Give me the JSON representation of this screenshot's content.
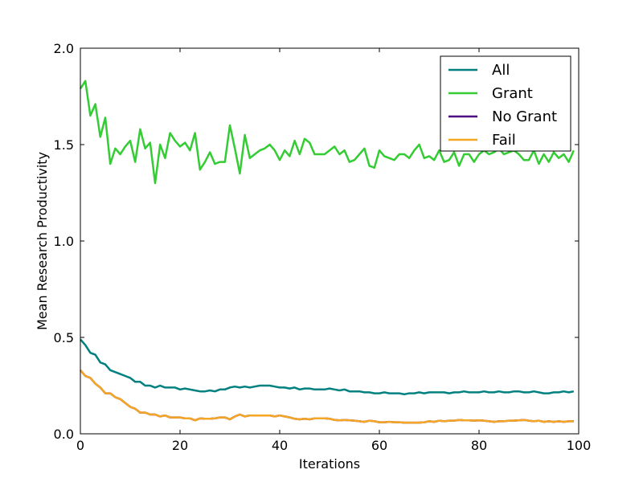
{
  "chart_data": {
    "type": "line",
    "title": "",
    "xlabel": "Iterations",
    "ylabel": "Mean Research Productivity",
    "xlim": [
      0,
      100
    ],
    "ylim": [
      0.0,
      2.0
    ],
    "xticks": [
      0,
      20,
      40,
      60,
      80,
      100
    ],
    "yticks": [
      0.0,
      0.5,
      1.0,
      1.5,
      2.0
    ],
    "xtick_labels": [
      "0",
      "20",
      "40",
      "60",
      "80",
      "100"
    ],
    "ytick_labels": [
      "0.0",
      "0.5",
      "1.0",
      "1.5",
      "2.0"
    ],
    "grid": false,
    "legend_position": "top-right",
    "series": [
      {
        "name": "All",
        "color": "#008080",
        "x": [
          0,
          1,
          2,
          3,
          4,
          5,
          6,
          7,
          8,
          9,
          10,
          11,
          12,
          13,
          14,
          15,
          16,
          17,
          18,
          19,
          20,
          21,
          22,
          23,
          24,
          25,
          26,
          27,
          28,
          29,
          30,
          31,
          32,
          33,
          34,
          35,
          36,
          37,
          38,
          39,
          40,
          41,
          42,
          43,
          44,
          45,
          46,
          47,
          48,
          49,
          50,
          51,
          52,
          53,
          54,
          55,
          56,
          57,
          58,
          59,
          60,
          61,
          62,
          63,
          64,
          65,
          66,
          67,
          68,
          69,
          70,
          71,
          72,
          73,
          74,
          75,
          76,
          77,
          78,
          79,
          80,
          81,
          82,
          83,
          84,
          85,
          86,
          87,
          88,
          89,
          90,
          91,
          92,
          93,
          94,
          95,
          96,
          97,
          98,
          99
        ],
        "values": [
          0.49,
          0.46,
          0.42,
          0.41,
          0.37,
          0.36,
          0.33,
          0.32,
          0.31,
          0.3,
          0.29,
          0.27,
          0.27,
          0.25,
          0.25,
          0.24,
          0.25,
          0.24,
          0.24,
          0.24,
          0.23,
          0.235,
          0.23,
          0.225,
          0.22,
          0.22,
          0.225,
          0.22,
          0.23,
          0.23,
          0.24,
          0.245,
          0.24,
          0.245,
          0.24,
          0.245,
          0.25,
          0.25,
          0.25,
          0.245,
          0.24,
          0.24,
          0.235,
          0.24,
          0.23,
          0.235,
          0.235,
          0.23,
          0.23,
          0.23,
          0.235,
          0.23,
          0.225,
          0.23,
          0.22,
          0.22,
          0.22,
          0.215,
          0.215,
          0.21,
          0.21,
          0.215,
          0.21,
          0.21,
          0.21,
          0.205,
          0.21,
          0.21,
          0.215,
          0.21,
          0.215,
          0.215,
          0.215,
          0.215,
          0.21,
          0.215,
          0.215,
          0.22,
          0.215,
          0.215,
          0.215,
          0.22,
          0.215,
          0.215,
          0.22,
          0.215,
          0.215,
          0.22,
          0.22,
          0.215,
          0.215,
          0.22,
          0.215,
          0.21,
          0.21,
          0.215,
          0.215,
          0.22,
          0.215,
          0.22
        ]
      },
      {
        "name": "Grant",
        "color": "#33cc33",
        "x": [
          0,
          1,
          2,
          3,
          4,
          5,
          6,
          7,
          8,
          9,
          10,
          11,
          12,
          13,
          14,
          15,
          16,
          17,
          18,
          19,
          20,
          21,
          22,
          23,
          24,
          25,
          26,
          27,
          28,
          29,
          30,
          31,
          32,
          33,
          34,
          35,
          36,
          37,
          38,
          39,
          40,
          41,
          42,
          43,
          44,
          45,
          46,
          47,
          48,
          49,
          50,
          51,
          52,
          53,
          54,
          55,
          56,
          57,
          58,
          59,
          60,
          61,
          62,
          63,
          64,
          65,
          66,
          67,
          68,
          69,
          70,
          71,
          72,
          73,
          74,
          75,
          76,
          77,
          78,
          79,
          80,
          81,
          82,
          83,
          84,
          85,
          86,
          87,
          88,
          89,
          90,
          91,
          92,
          93,
          94,
          95,
          96,
          97,
          98,
          99
        ],
        "values": [
          1.79,
          1.83,
          1.65,
          1.71,
          1.54,
          1.64,
          1.4,
          1.48,
          1.45,
          1.49,
          1.52,
          1.41,
          1.58,
          1.48,
          1.51,
          1.3,
          1.5,
          1.43,
          1.56,
          1.52,
          1.49,
          1.51,
          1.47,
          1.56,
          1.37,
          1.41,
          1.46,
          1.4,
          1.41,
          1.41,
          1.6,
          1.48,
          1.35,
          1.55,
          1.43,
          1.45,
          1.47,
          1.48,
          1.5,
          1.47,
          1.42,
          1.47,
          1.44,
          1.52,
          1.45,
          1.53,
          1.51,
          1.45,
          1.45,
          1.45,
          1.47,
          1.49,
          1.45,
          1.47,
          1.41,
          1.42,
          1.45,
          1.48,
          1.39,
          1.38,
          1.47,
          1.44,
          1.43,
          1.42,
          1.45,
          1.45,
          1.43,
          1.47,
          1.5,
          1.43,
          1.44,
          1.42,
          1.47,
          1.41,
          1.42,
          1.46,
          1.39,
          1.45,
          1.45,
          1.41,
          1.45,
          1.47,
          1.45,
          1.46,
          1.48,
          1.45,
          1.46,
          1.47,
          1.45,
          1.42,
          1.42,
          1.47,
          1.4,
          1.45,
          1.41,
          1.46,
          1.43,
          1.45,
          1.41,
          1.47
        ]
      },
      {
        "name": "No Grant",
        "color": "#4b0082",
        "x": [
          0,
          1,
          2,
          3,
          4,
          5,
          6,
          7,
          8,
          9,
          10,
          11,
          12,
          13,
          14,
          15,
          16,
          17,
          18,
          19,
          20,
          21,
          22,
          23,
          24,
          25,
          26,
          27,
          28,
          29,
          30,
          31,
          32,
          33,
          34,
          35,
          36,
          37,
          38,
          39,
          40,
          41,
          42,
          43,
          44,
          45,
          46,
          47,
          48,
          49,
          50,
          51,
          52,
          53,
          54,
          55,
          56,
          57,
          58,
          59,
          60,
          61,
          62,
          63,
          64,
          65,
          66,
          67,
          68,
          69,
          70,
          71,
          72,
          73,
          74,
          75,
          76,
          77,
          78,
          79,
          80,
          81,
          82,
          83,
          84,
          85,
          86,
          87,
          88,
          89,
          90,
          91,
          92,
          93,
          94,
          95,
          96,
          97,
          98,
          99
        ],
        "values": [
          0.33,
          0.3,
          0.29,
          0.26,
          0.24,
          0.21,
          0.21,
          0.19,
          0.18,
          0.16,
          0.14,
          0.13,
          0.11,
          0.11,
          0.1,
          0.1,
          0.09,
          0.095,
          0.085,
          0.085,
          0.085,
          0.08,
          0.08,
          0.07,
          0.08,
          0.078,
          0.078,
          0.08,
          0.085,
          0.085,
          0.075,
          0.09,
          0.1,
          0.09,
          0.095,
          0.095,
          0.095,
          0.095,
          0.095,
          0.09,
          0.095,
          0.09,
          0.085,
          0.078,
          0.075,
          0.078,
          0.075,
          0.08,
          0.08,
          0.08,
          0.078,
          0.072,
          0.07,
          0.072,
          0.07,
          0.068,
          0.065,
          0.062,
          0.068,
          0.065,
          0.06,
          0.06,
          0.062,
          0.06,
          0.06,
          0.058,
          0.058,
          0.058,
          0.058,
          0.06,
          0.065,
          0.062,
          0.068,
          0.065,
          0.068,
          0.068,
          0.072,
          0.07,
          0.07,
          0.068,
          0.07,
          0.068,
          0.065,
          0.062,
          0.065,
          0.065,
          0.068,
          0.068,
          0.07,
          0.072,
          0.068,
          0.065,
          0.068,
          0.062,
          0.065,
          0.062,
          0.065,
          0.062,
          0.065,
          0.065
        ]
      },
      {
        "name": "Fail",
        "color": "#f5a623",
        "x": [
          0,
          1,
          2,
          3,
          4,
          5,
          6,
          7,
          8,
          9,
          10,
          11,
          12,
          13,
          14,
          15,
          16,
          17,
          18,
          19,
          20,
          21,
          22,
          23,
          24,
          25,
          26,
          27,
          28,
          29,
          30,
          31,
          32,
          33,
          34,
          35,
          36,
          37,
          38,
          39,
          40,
          41,
          42,
          43,
          44,
          45,
          46,
          47,
          48,
          49,
          50,
          51,
          52,
          53,
          54,
          55,
          56,
          57,
          58,
          59,
          60,
          61,
          62,
          63,
          64,
          65,
          66,
          67,
          68,
          69,
          70,
          71,
          72,
          73,
          74,
          75,
          76,
          77,
          78,
          79,
          80,
          81,
          82,
          83,
          84,
          85,
          86,
          87,
          88,
          89,
          90,
          91,
          92,
          93,
          94,
          95,
          96,
          97,
          98,
          99
        ],
        "values": [
          0.33,
          0.3,
          0.29,
          0.26,
          0.24,
          0.21,
          0.21,
          0.19,
          0.18,
          0.16,
          0.14,
          0.13,
          0.11,
          0.11,
          0.1,
          0.1,
          0.09,
          0.095,
          0.085,
          0.085,
          0.085,
          0.08,
          0.08,
          0.07,
          0.08,
          0.078,
          0.078,
          0.08,
          0.085,
          0.085,
          0.075,
          0.09,
          0.1,
          0.09,
          0.095,
          0.095,
          0.095,
          0.095,
          0.095,
          0.09,
          0.095,
          0.09,
          0.085,
          0.078,
          0.075,
          0.078,
          0.075,
          0.08,
          0.08,
          0.08,
          0.078,
          0.072,
          0.07,
          0.072,
          0.07,
          0.068,
          0.065,
          0.062,
          0.068,
          0.065,
          0.06,
          0.06,
          0.062,
          0.06,
          0.06,
          0.058,
          0.058,
          0.058,
          0.058,
          0.06,
          0.065,
          0.062,
          0.068,
          0.065,
          0.068,
          0.068,
          0.072,
          0.07,
          0.07,
          0.068,
          0.07,
          0.068,
          0.065,
          0.062,
          0.065,
          0.065,
          0.068,
          0.068,
          0.07,
          0.072,
          0.068,
          0.065,
          0.068,
          0.062,
          0.065,
          0.062,
          0.065,
          0.062,
          0.065,
          0.065
        ]
      }
    ]
  }
}
